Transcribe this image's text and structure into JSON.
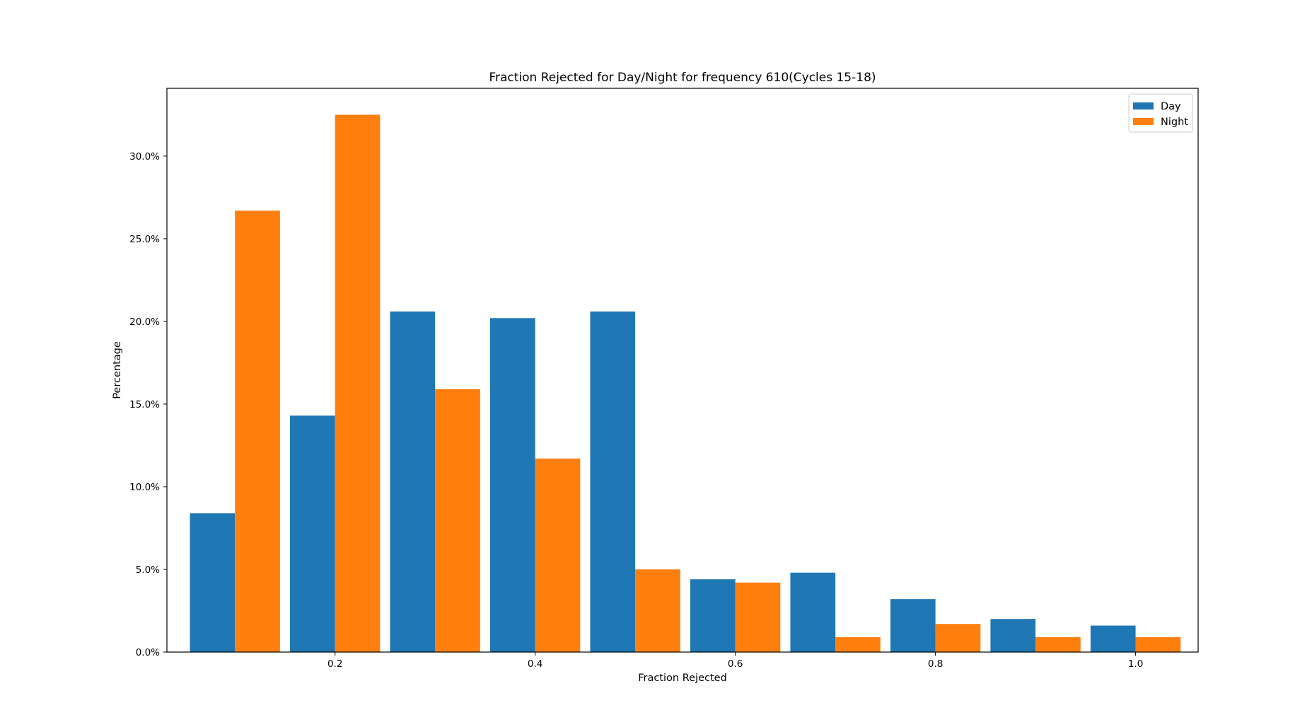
{
  "chart_data": {
    "type": "bar",
    "title": "Fraction Rejected for Day/Night for frequency 610(Cycles 15-18)",
    "xlabel": "Fraction Rejected",
    "ylabel": "Percentage",
    "x": [
      0.1,
      0.2,
      0.3,
      0.4,
      0.5,
      0.6,
      0.7,
      0.8,
      0.9,
      1.0
    ],
    "series": [
      {
        "name": "Day",
        "color": "#1f77b4",
        "values": [
          8.4,
          14.3,
          20.6,
          20.2,
          20.6,
          4.4,
          4.8,
          3.2,
          2.0,
          1.6
        ]
      },
      {
        "name": "Night",
        "color": "#ff7f0e",
        "values": [
          26.7,
          32.5,
          15.9,
          11.7,
          5.0,
          4.2,
          0.9,
          1.7,
          0.9,
          0.9
        ]
      }
    ],
    "xlim": [
      0.032,
      1.0625
    ],
    "ylim": [
      0,
      34.1
    ],
    "xticks": [
      0.2,
      0.4,
      0.6,
      0.8,
      1.0
    ],
    "xtick_labels": [
      "0.2",
      "0.4",
      "0.6",
      "0.8",
      "1.0"
    ],
    "yticks": [
      0,
      5,
      10,
      15,
      20,
      25,
      30
    ],
    "ytick_labels": [
      "0.0%",
      "5.0%",
      "10.0%",
      "15.0%",
      "20.0%",
      "25.0%",
      "30.0%"
    ],
    "legend": {
      "position": "top-right",
      "entries": [
        "Day",
        "Night"
      ]
    },
    "grid": false
  }
}
